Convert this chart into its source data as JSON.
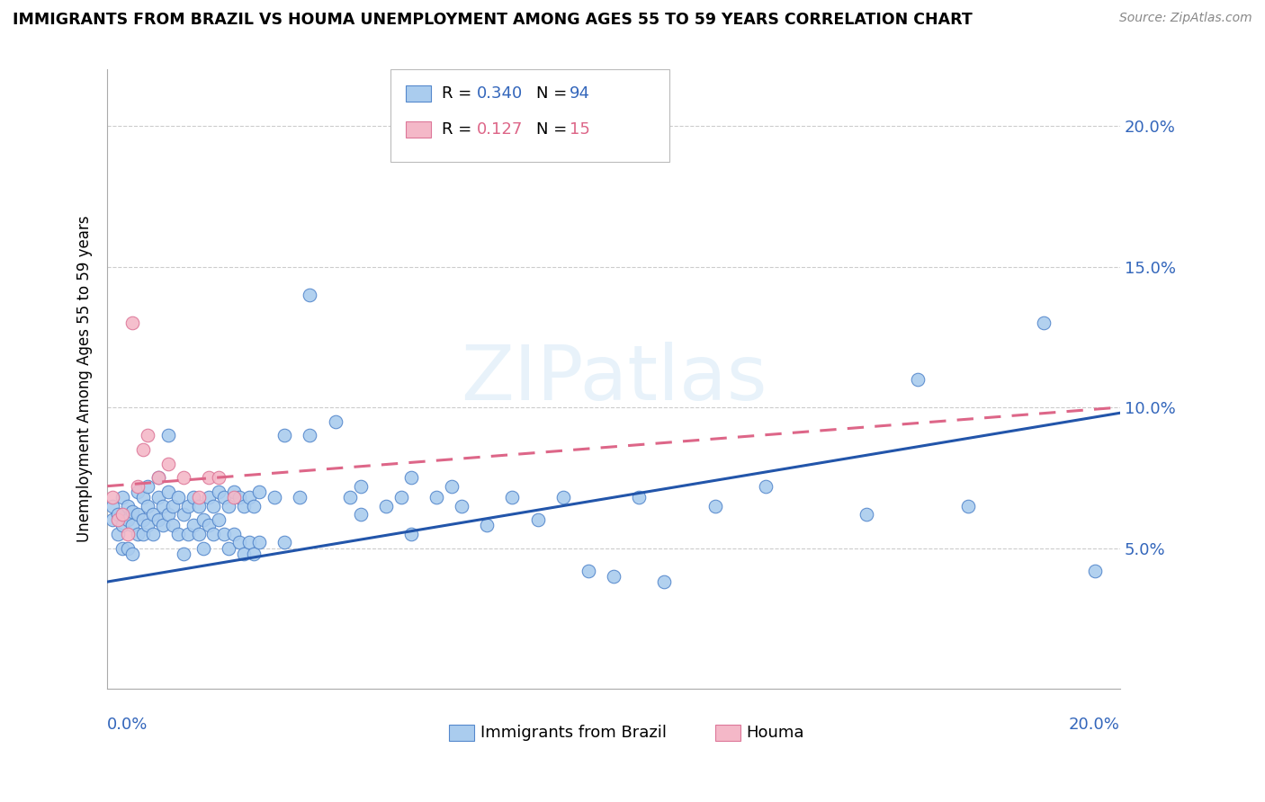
{
  "title": "IMMIGRANTS FROM BRAZIL VS HOUMA UNEMPLOYMENT AMONG AGES 55 TO 59 YEARS CORRELATION CHART",
  "source": "Source: ZipAtlas.com",
  "ylabel": "Unemployment Among Ages 55 to 59 years",
  "xlim": [
    0.0,
    0.2
  ],
  "ylim": [
    0.0,
    0.22
  ],
  "yticks": [
    0.05,
    0.1,
    0.15,
    0.2
  ],
  "ytick_labels": [
    "5.0%",
    "10.0%",
    "15.0%",
    "20.0%"
  ],
  "brazil_color": "#aaccee",
  "houma_color": "#f4b8c8",
  "brazil_edge_color": "#5588cc",
  "houma_edge_color": "#dd7799",
  "brazil_line_color": "#2255aa",
  "houma_line_color": "#dd6688",
  "label_color": "#3366bb",
  "watermark": "ZIPatlas",
  "brazil_points": [
    [
      0.001,
      0.065
    ],
    [
      0.001,
      0.06
    ],
    [
      0.002,
      0.062
    ],
    [
      0.002,
      0.055
    ],
    [
      0.003,
      0.058
    ],
    [
      0.003,
      0.068
    ],
    [
      0.003,
      0.05
    ],
    [
      0.004,
      0.06
    ],
    [
      0.004,
      0.065
    ],
    [
      0.004,
      0.05
    ],
    [
      0.005,
      0.063
    ],
    [
      0.005,
      0.058
    ],
    [
      0.005,
      0.048
    ],
    [
      0.006,
      0.062
    ],
    [
      0.006,
      0.055
    ],
    [
      0.006,
      0.07
    ],
    [
      0.007,
      0.068
    ],
    [
      0.007,
      0.06
    ],
    [
      0.007,
      0.055
    ],
    [
      0.008,
      0.065
    ],
    [
      0.008,
      0.058
    ],
    [
      0.008,
      0.072
    ],
    [
      0.009,
      0.062
    ],
    [
      0.009,
      0.055
    ],
    [
      0.01,
      0.068
    ],
    [
      0.01,
      0.06
    ],
    [
      0.01,
      0.075
    ],
    [
      0.011,
      0.065
    ],
    [
      0.011,
      0.058
    ],
    [
      0.012,
      0.07
    ],
    [
      0.012,
      0.062
    ],
    [
      0.012,
      0.09
    ],
    [
      0.013,
      0.065
    ],
    [
      0.013,
      0.058
    ],
    [
      0.014,
      0.068
    ],
    [
      0.014,
      0.055
    ],
    [
      0.015,
      0.062
    ],
    [
      0.015,
      0.048
    ],
    [
      0.016,
      0.065
    ],
    [
      0.016,
      0.055
    ],
    [
      0.017,
      0.068
    ],
    [
      0.017,
      0.058
    ],
    [
      0.018,
      0.065
    ],
    [
      0.018,
      0.055
    ],
    [
      0.019,
      0.06
    ],
    [
      0.019,
      0.05
    ],
    [
      0.02,
      0.068
    ],
    [
      0.02,
      0.058
    ],
    [
      0.021,
      0.065
    ],
    [
      0.021,
      0.055
    ],
    [
      0.022,
      0.07
    ],
    [
      0.022,
      0.06
    ],
    [
      0.023,
      0.068
    ],
    [
      0.023,
      0.055
    ],
    [
      0.024,
      0.065
    ],
    [
      0.024,
      0.05
    ],
    [
      0.025,
      0.07
    ],
    [
      0.025,
      0.055
    ],
    [
      0.026,
      0.068
    ],
    [
      0.026,
      0.052
    ],
    [
      0.027,
      0.065
    ],
    [
      0.027,
      0.048
    ],
    [
      0.028,
      0.068
    ],
    [
      0.028,
      0.052
    ],
    [
      0.029,
      0.065
    ],
    [
      0.029,
      0.048
    ],
    [
      0.03,
      0.07
    ],
    [
      0.03,
      0.052
    ],
    [
      0.033,
      0.068
    ],
    [
      0.035,
      0.09
    ],
    [
      0.035,
      0.052
    ],
    [
      0.038,
      0.068
    ],
    [
      0.04,
      0.14
    ],
    [
      0.04,
      0.09
    ],
    [
      0.045,
      0.095
    ],
    [
      0.048,
      0.068
    ],
    [
      0.05,
      0.072
    ],
    [
      0.05,
      0.062
    ],
    [
      0.055,
      0.065
    ],
    [
      0.058,
      0.068
    ],
    [
      0.06,
      0.075
    ],
    [
      0.06,
      0.055
    ],
    [
      0.065,
      0.068
    ],
    [
      0.068,
      0.072
    ],
    [
      0.07,
      0.065
    ],
    [
      0.075,
      0.058
    ],
    [
      0.08,
      0.068
    ],
    [
      0.085,
      0.06
    ],
    [
      0.09,
      0.068
    ],
    [
      0.095,
      0.042
    ],
    [
      0.1,
      0.04
    ],
    [
      0.105,
      0.068
    ],
    [
      0.11,
      0.038
    ],
    [
      0.12,
      0.065
    ],
    [
      0.13,
      0.072
    ],
    [
      0.15,
      0.062
    ],
    [
      0.16,
      0.11
    ],
    [
      0.17,
      0.065
    ],
    [
      0.185,
      0.13
    ],
    [
      0.195,
      0.042
    ]
  ],
  "houma_points": [
    [
      0.001,
      0.068
    ],
    [
      0.002,
      0.06
    ],
    [
      0.003,
      0.062
    ],
    [
      0.004,
      0.055
    ],
    [
      0.005,
      0.13
    ],
    [
      0.006,
      0.072
    ],
    [
      0.007,
      0.085
    ],
    [
      0.008,
      0.09
    ],
    [
      0.01,
      0.075
    ],
    [
      0.012,
      0.08
    ],
    [
      0.015,
      0.075
    ],
    [
      0.018,
      0.068
    ],
    [
      0.02,
      0.075
    ],
    [
      0.022,
      0.075
    ],
    [
      0.025,
      0.068
    ]
  ],
  "brazil_line": [
    0.0,
    0.2,
    0.038,
    0.098
  ],
  "houma_line": [
    0.0,
    0.2,
    0.072,
    0.1
  ]
}
